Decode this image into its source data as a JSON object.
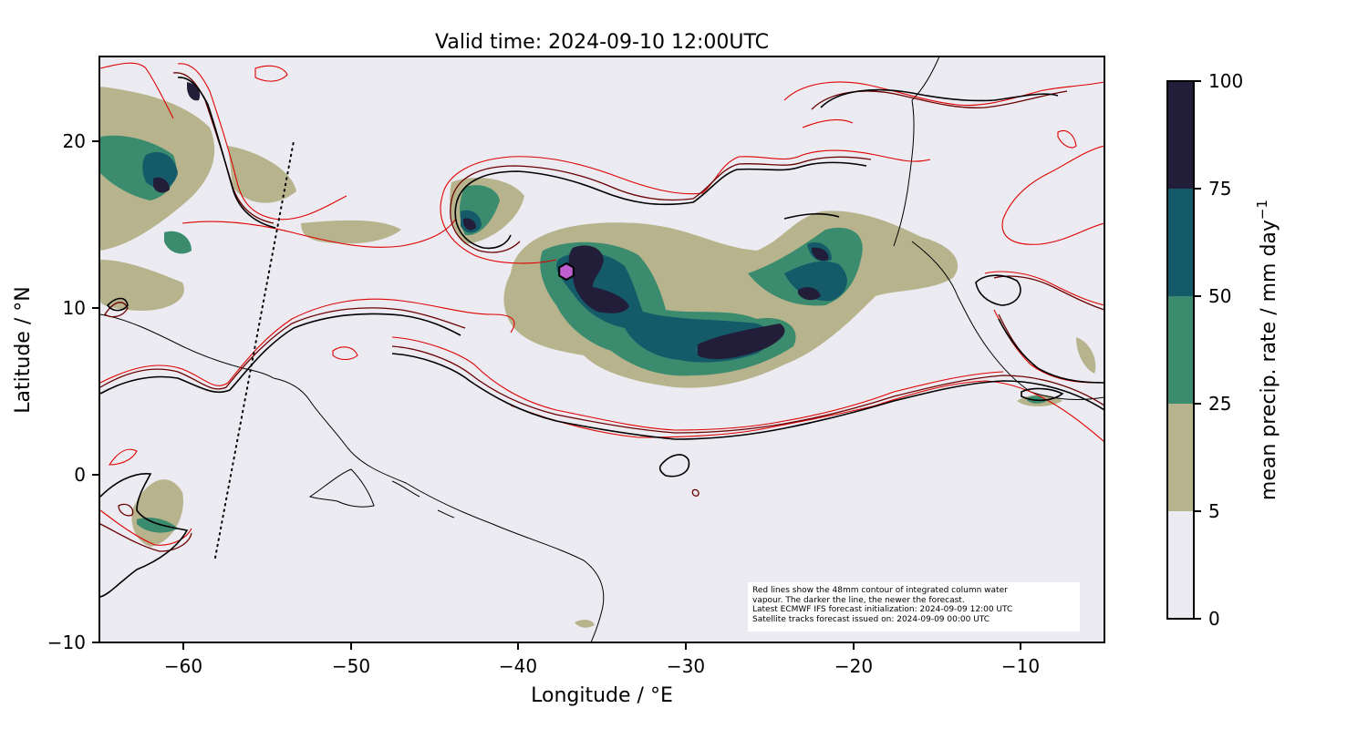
{
  "title": "Valid time: 2024-09-10 12:00UTC",
  "xlabel": "Longitude / °E",
  "ylabel": "Latitude / °N",
  "x_ticks": [
    "−60",
    "−50",
    "−40",
    "−30",
    "−20",
    "−10"
  ],
  "y_ticks": [
    "20",
    "10",
    "0",
    "−10"
  ],
  "x_range": [
    -65,
    -5
  ],
  "y_range": [
    -10,
    25
  ],
  "colorbar": {
    "label_main": "mean precip. rate / mm day",
    "label_sup": "−1",
    "ticks": [
      "0",
      "5",
      "25",
      "50",
      "75",
      "100"
    ],
    "colors": [
      "#ecebf1",
      "#b7b48d",
      "#3b8b6f",
      "#155a68",
      "#221e3a"
    ]
  },
  "annotation": {
    "lines": [
      "Red lines show the 48mm contour of integrated column water",
      "vapour. The darker the line, the newer the forecast.",
      "Latest ECMWF IFS forecast initialization: 2024-09-09 12:00 UTC",
      "Satellite tracks forecast issued on: 2024-09-09 00:00 UTC"
    ]
  },
  "colors": {
    "background": "#ecebf1",
    "contour_newest": "#000000",
    "contour_mid": "#6b0000",
    "contour_old": "#e00000",
    "marker": "#c060d0"
  },
  "marker": {
    "lon": -37.1,
    "lat": 12.2,
    "shape": "hexagon"
  },
  "satellite_track": {
    "from": [
      -58,
      -5
    ],
    "to": [
      -54.5,
      20
    ]
  }
}
